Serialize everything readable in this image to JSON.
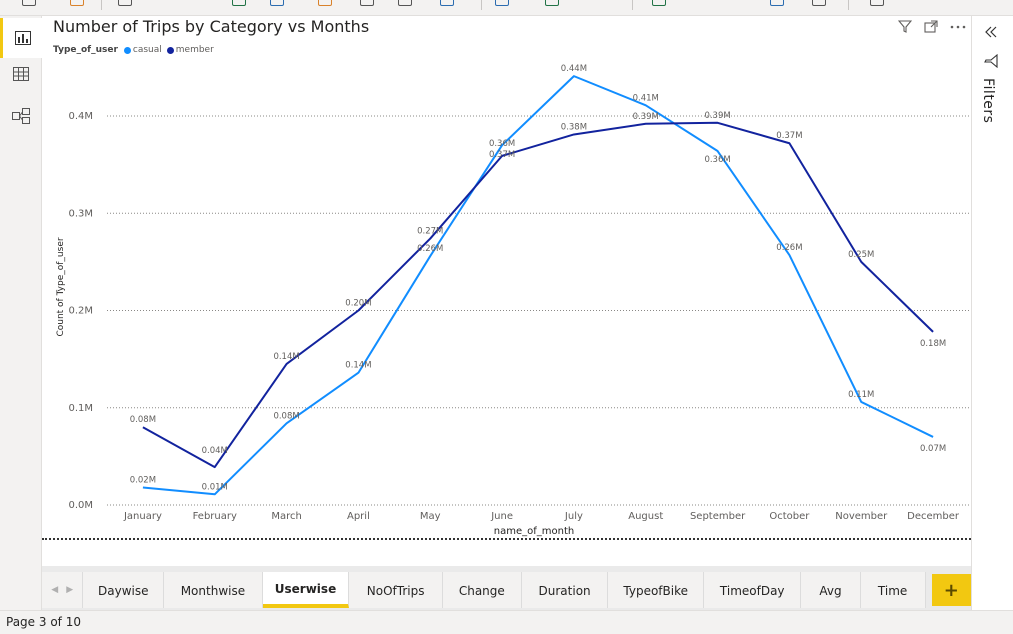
{
  "status": {
    "page_indicator": "Page 3 of 10"
  },
  "filters_pane": {
    "label": "Filters"
  },
  "tabs": [
    {
      "label": "Daywise",
      "active": false
    },
    {
      "label": "Monthwise",
      "active": false
    },
    {
      "label": "Userwise",
      "active": true
    },
    {
      "label": "NoOfTrips",
      "active": false
    },
    {
      "label": "Change",
      "active": false
    },
    {
      "label": "Duration",
      "active": false
    },
    {
      "label": "TypeofBike",
      "active": false
    },
    {
      "label": "TimeofDay",
      "active": false
    },
    {
      "label": "Avg",
      "active": false
    },
    {
      "label": "Time",
      "active": false
    }
  ],
  "tab_add_label": "+",
  "colors": {
    "casual": "#118dff",
    "member": "#12239e",
    "accent": "#f2c811"
  },
  "chart_data": {
    "type": "line",
    "title": "Number of Trips by Category vs Months",
    "legend_title": "Type_of_user",
    "legend_position": "top-left",
    "xlabel": "name_of_month",
    "ylabel": "Count of Type_of_user",
    "ylim": [
      0,
      0.4
    ],
    "y_unit": "M",
    "yticks": [
      "0.0M",
      "0.1M",
      "0.2M",
      "0.3M",
      "0.4M"
    ],
    "grid": true,
    "categories": [
      "January",
      "February",
      "March",
      "April",
      "May",
      "June",
      "July",
      "August",
      "September",
      "October",
      "November",
      "December"
    ],
    "series": [
      {
        "name": "casual",
        "values": [
          0.018,
          0.011,
          0.084,
          0.136,
          0.256,
          0.37,
          0.441,
          0.411,
          0.364,
          0.257,
          0.106,
          0.07
        ],
        "labels": [
          "0.02M",
          "0.01M",
          "0.08M",
          "0.14M",
          "0.26M",
          "0.37M",
          "0.44M",
          "0.41M",
          "0.36M",
          "0.26M",
          "0.11M",
          "0.07M"
        ]
      },
      {
        "name": "member",
        "values": [
          0.08,
          0.039,
          0.145,
          0.2,
          0.274,
          0.359,
          0.381,
          0.392,
          0.393,
          0.372,
          0.25,
          0.178
        ],
        "labels": [
          "0.08M",
          "0.04M",
          "0.14M",
          "0.20M",
          "0.27M",
          "0.36M",
          "0.38M",
          "0.39M",
          "0.39M",
          "0.37M",
          "0.25M",
          "0.18M"
        ]
      }
    ]
  }
}
